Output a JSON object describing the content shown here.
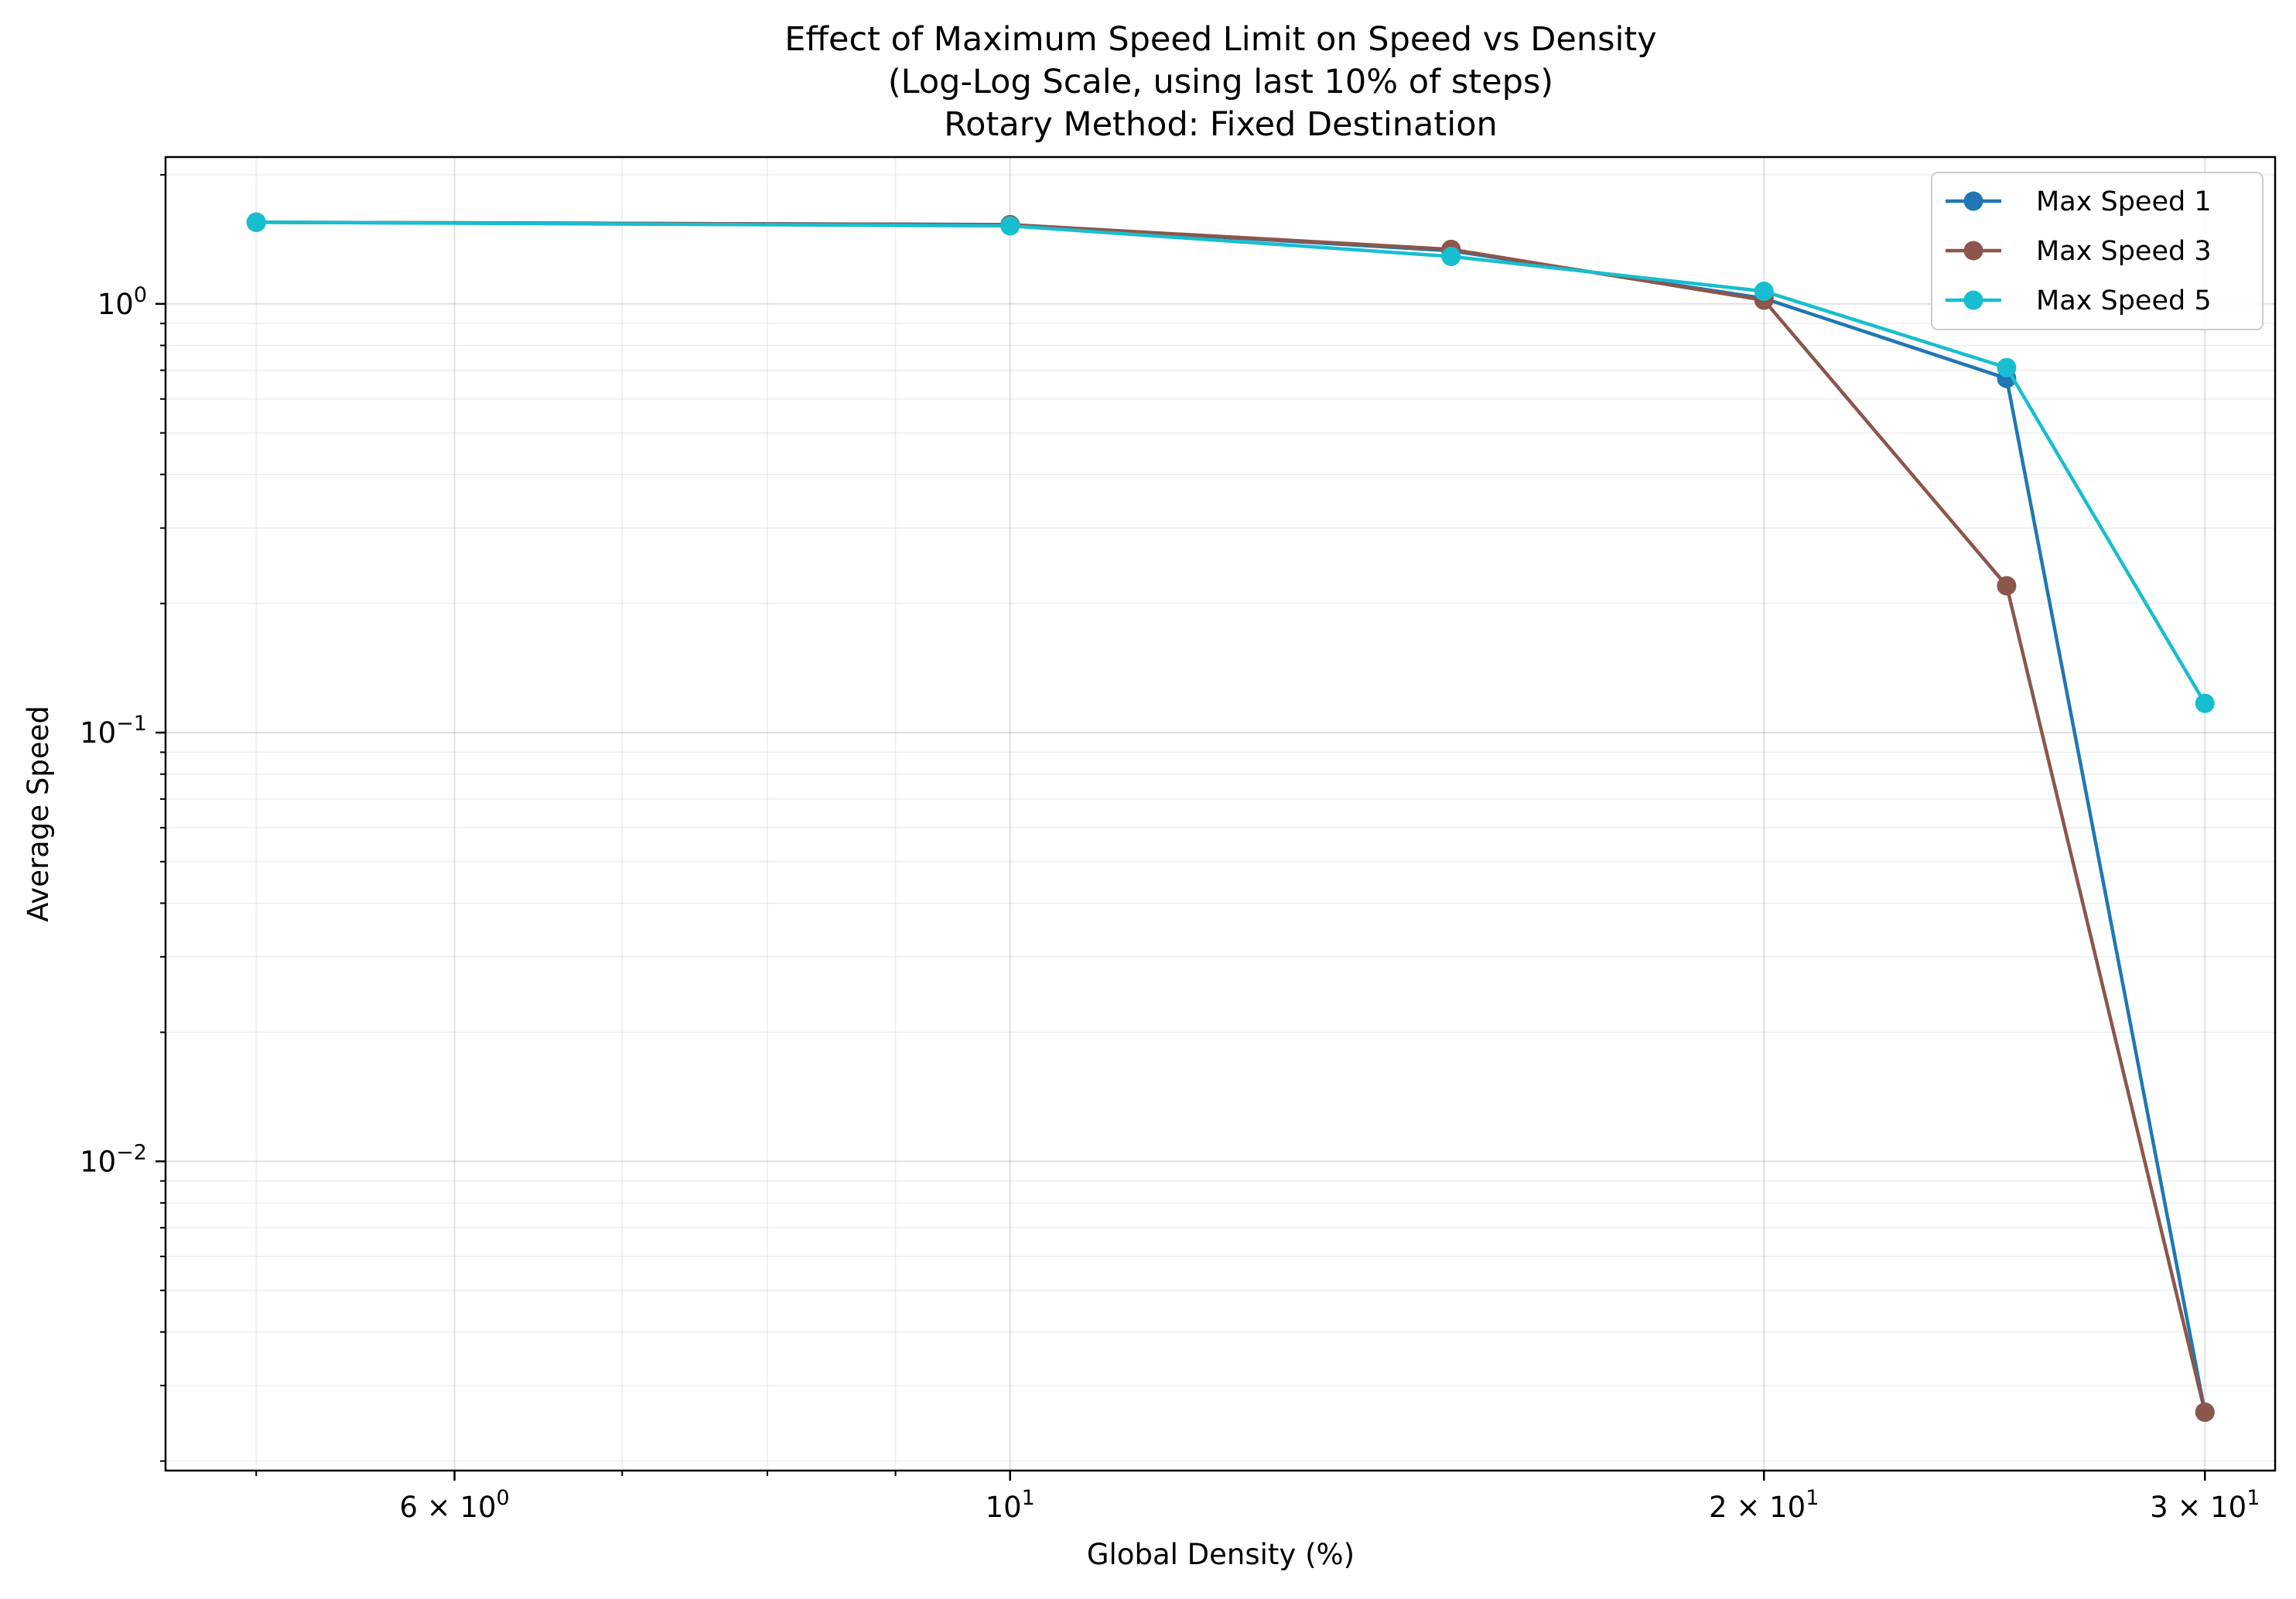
{
  "chart_data": {
    "type": "line",
    "title_lines": [
      "Effect of Maximum Speed Limit on Speed vs Density",
      "(Log-Log Scale, using last 10% of steps)",
      "Rotary Method: Fixed Destination"
    ],
    "xlabel": "Global Density (%)",
    "ylabel": "Average Speed",
    "xscale": "log",
    "yscale": "log",
    "xlim": [
      4.6,
      32
    ],
    "ylim": [
      0.0019,
      2.2
    ],
    "grid": true,
    "legend_position": "top-right",
    "x_ticks": [
      {
        "value": 6,
        "base": "6",
        "mult": "×",
        "pow": "10",
        "exp": "0"
      },
      {
        "value": 10,
        "base": "",
        "mult": "",
        "pow": "10",
        "exp": "1"
      },
      {
        "value": 20,
        "base": "2",
        "mult": "×",
        "pow": "10",
        "exp": "1"
      },
      {
        "value": 30,
        "base": "3",
        "mult": "×",
        "pow": "10",
        "exp": "1"
      }
    ],
    "y_ticks": [
      {
        "value": 1,
        "pow": "10",
        "exp": "0"
      },
      {
        "value": 0.1,
        "pow": "10",
        "exp": "−1"
      },
      {
        "value": 0.01,
        "pow": "10",
        "exp": "−2"
      }
    ],
    "series": [
      {
        "name": "Max Speed 1",
        "color": "#1f77b4",
        "x": [
          5,
          10,
          15,
          20,
          25,
          30
        ],
        "y": [
          1.55,
          1.53,
          1.33,
          1.03,
          0.67,
          0.0026
        ]
      },
      {
        "name": "Max Speed 3",
        "color": "#8c564b",
        "x": [
          5,
          10,
          15,
          20,
          25,
          30
        ],
        "y": [
          1.55,
          1.53,
          1.34,
          1.02,
          0.22,
          0.0026
        ]
      },
      {
        "name": "Max Speed 5",
        "color": "#17becf",
        "x": [
          5,
          10,
          15,
          20,
          25,
          30
        ],
        "y": [
          1.55,
          1.52,
          1.29,
          1.07,
          0.71,
          0.117
        ]
      }
    ]
  }
}
